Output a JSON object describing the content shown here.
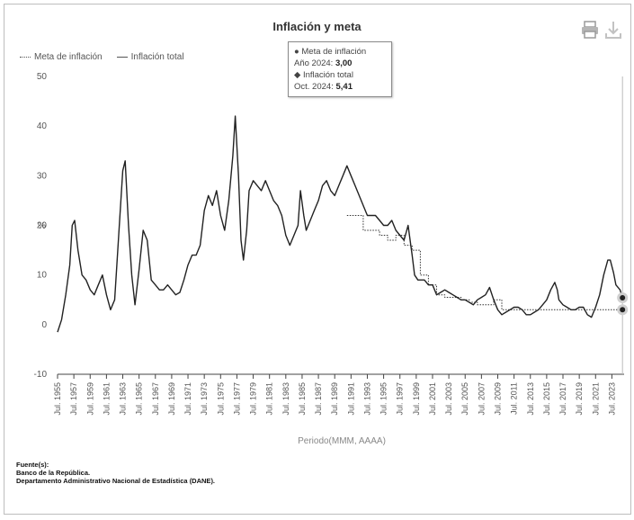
{
  "chart_data": {
    "type": "line",
    "title": "Inflación y meta",
    "xlabel": "Periodo(MMM, AAAA)",
    "ylabel": "%",
    "ylim": [
      -10,
      50
    ],
    "yticks": [
      -10,
      0,
      10,
      20,
      30,
      40,
      50
    ],
    "xlim": [
      1955.5,
      2025.0
    ],
    "x_tick_labels": [
      {
        "label": "Jul. 1955",
        "x": 1955.5
      },
      {
        "label": "Jul. 1957",
        "x": 1957.5
      },
      {
        "label": "Jul. 1959",
        "x": 1959.5
      },
      {
        "label": "Jul. 1961",
        "x": 1961.5
      },
      {
        "label": "Jul. 1963",
        "x": 1963.5
      },
      {
        "label": "Jul. 1965",
        "x": 1965.5
      },
      {
        "label": "Jul. 1967",
        "x": 1967.5
      },
      {
        "label": "Jul. 1969",
        "x": 1969.5
      },
      {
        "label": "Jul. 1971",
        "x": 1971.5
      },
      {
        "label": "Jul. 1973",
        "x": 1973.5
      },
      {
        "label": "Jul. 1975",
        "x": 1975.5
      },
      {
        "label": "Jul. 1977",
        "x": 1977.5
      },
      {
        "label": "Jul. 1979",
        "x": 1979.5
      },
      {
        "label": "Jul. 1981",
        "x": 1981.5
      },
      {
        "label": "Jul. 1983",
        "x": 1983.5
      },
      {
        "label": "Jul. 1985",
        "x": 1985.5
      },
      {
        "label": "Jul. 1987",
        "x": 1987.5
      },
      {
        "label": "Jul. 1989",
        "x": 1989.5
      },
      {
        "label": "Jul. 1991",
        "x": 1991.5
      },
      {
        "label": "Jul. 1993",
        "x": 1993.5
      },
      {
        "label": "Jul. 1995",
        "x": 1995.5
      },
      {
        "label": "Jul. 1997",
        "x": 1997.5
      },
      {
        "label": "Jul. 1999",
        "x": 1999.5
      },
      {
        "label": "Jul. 2001",
        "x": 2001.5
      },
      {
        "label": "Jul. 2003",
        "x": 2003.5
      },
      {
        "label": "Jul. 2005",
        "x": 2005.5
      },
      {
        "label": "Jul. 2007",
        "x": 2007.5
      },
      {
        "label": "Jul. 2009",
        "x": 2009.5
      },
      {
        "label": "Jul. 2011",
        "x": 2011.5
      },
      {
        "label": "Jul. 2013",
        "x": 2013.5
      },
      {
        "label": "Jul. 2015",
        "x": 2015.5
      },
      {
        "label": "Jul. 2017",
        "x": 2017.5
      },
      {
        "label": "Jul. 2019",
        "x": 2019.5
      },
      {
        "label": "Jul. 2021",
        "x": 2021.5
      },
      {
        "label": "Jul. 2023",
        "x": 2023.5
      }
    ],
    "grid": false,
    "legend_position": "top-left",
    "series": [
      {
        "name": "Meta de inflación",
        "style": "dotted",
        "color": "#333333",
        "points": [
          [
            1991.0,
            22
          ],
          [
            1992.0,
            22
          ],
          [
            1992.0,
            22
          ],
          [
            1993.0,
            22
          ],
          [
            1993.0,
            19
          ],
          [
            1994.0,
            19
          ],
          [
            1994.0,
            19
          ],
          [
            1995.0,
            19
          ],
          [
            1995.0,
            18
          ],
          [
            1996.0,
            18
          ],
          [
            1996.0,
            17
          ],
          [
            1997.0,
            17
          ],
          [
            1997.0,
            18
          ],
          [
            1998.0,
            18
          ],
          [
            1998.0,
            16
          ],
          [
            1999.0,
            16
          ],
          [
            1999.0,
            15
          ],
          [
            2000.0,
            15
          ],
          [
            2000.0,
            10
          ],
          [
            2001.0,
            10
          ],
          [
            2001.0,
            8
          ],
          [
            2002.0,
            8
          ],
          [
            2002.0,
            6
          ],
          [
            2003.0,
            6
          ],
          [
            2003.0,
            5.5
          ],
          [
            2004.0,
            5.5
          ],
          [
            2004.0,
            5.5
          ],
          [
            2005.0,
            5.5
          ],
          [
            2005.0,
            5
          ],
          [
            2006.0,
            5
          ],
          [
            2006.0,
            4.5
          ],
          [
            2007.0,
            4.5
          ],
          [
            2007.0,
            4
          ],
          [
            2008.0,
            4
          ],
          [
            2008.0,
            4
          ],
          [
            2009.0,
            4
          ],
          [
            2009.0,
            5
          ],
          [
            2010.0,
            5
          ],
          [
            2010.0,
            3
          ],
          [
            2024.8,
            3
          ]
        ]
      },
      {
        "name": "Inflación total",
        "style": "solid",
        "color": "#222222",
        "points": [
          [
            1955.5,
            -1.5
          ],
          [
            1956.0,
            1
          ],
          [
            1956.5,
            6
          ],
          [
            1957.0,
            12
          ],
          [
            1957.3,
            20
          ],
          [
            1957.6,
            21
          ],
          [
            1958.0,
            15
          ],
          [
            1958.5,
            10
          ],
          [
            1959.0,
            9
          ],
          [
            1959.5,
            7
          ],
          [
            1960.0,
            6
          ],
          [
            1960.5,
            8
          ],
          [
            1961.0,
            10
          ],
          [
            1961.5,
            6
          ],
          [
            1962.0,
            3
          ],
          [
            1962.5,
            5
          ],
          [
            1963.0,
            18
          ],
          [
            1963.5,
            31
          ],
          [
            1963.8,
            33
          ],
          [
            1964.2,
            20
          ],
          [
            1964.6,
            10
          ],
          [
            1965.0,
            4
          ],
          [
            1965.5,
            11
          ],
          [
            1966.0,
            19
          ],
          [
            1966.5,
            17
          ],
          [
            1967.0,
            9
          ],
          [
            1967.5,
            8
          ],
          [
            1968.0,
            7
          ],
          [
            1968.5,
            7
          ],
          [
            1969.0,
            8
          ],
          [
            1969.5,
            7
          ],
          [
            1970.0,
            6
          ],
          [
            1970.5,
            6.5
          ],
          [
            1971.0,
            9
          ],
          [
            1971.5,
            12
          ],
          [
            1972.0,
            14
          ],
          [
            1972.5,
            14
          ],
          [
            1973.0,
            16
          ],
          [
            1973.5,
            23
          ],
          [
            1974.0,
            26
          ],
          [
            1974.5,
            24
          ],
          [
            1975.0,
            27
          ],
          [
            1975.5,
            22
          ],
          [
            1976.0,
            19
          ],
          [
            1976.5,
            25
          ],
          [
            1977.0,
            34
          ],
          [
            1977.3,
            42
          ],
          [
            1977.7,
            30
          ],
          [
            1978.0,
            17
          ],
          [
            1978.3,
            13
          ],
          [
            1978.7,
            19
          ],
          [
            1979.0,
            27
          ],
          [
            1979.5,
            29
          ],
          [
            1980.0,
            28
          ],
          [
            1980.5,
            27
          ],
          [
            1981.0,
            29
          ],
          [
            1981.5,
            27
          ],
          [
            1982.0,
            25
          ],
          [
            1982.5,
            24
          ],
          [
            1983.0,
            22
          ],
          [
            1983.5,
            18
          ],
          [
            1984.0,
            16
          ],
          [
            1984.5,
            18
          ],
          [
            1985.0,
            20
          ],
          [
            1985.3,
            27
          ],
          [
            1985.7,
            22
          ],
          [
            1986.0,
            19
          ],
          [
            1986.5,
            21
          ],
          [
            1987.0,
            23
          ],
          [
            1987.5,
            25
          ],
          [
            1988.0,
            28
          ],
          [
            1988.5,
            29
          ],
          [
            1989.0,
            27
          ],
          [
            1989.5,
            26
          ],
          [
            1990.0,
            28
          ],
          [
            1990.5,
            30
          ],
          [
            1991.0,
            32
          ],
          [
            1991.5,
            30
          ],
          [
            1992.0,
            28
          ],
          [
            1992.5,
            26
          ],
          [
            1993.0,
            24
          ],
          [
            1993.5,
            22
          ],
          [
            1994.0,
            22
          ],
          [
            1994.5,
            22
          ],
          [
            1995.0,
            21
          ],
          [
            1995.5,
            20
          ],
          [
            1996.0,
            20
          ],
          [
            1996.5,
            21
          ],
          [
            1997.0,
            19
          ],
          [
            1997.5,
            18
          ],
          [
            1998.0,
            17
          ],
          [
            1998.5,
            20
          ],
          [
            1999.0,
            14
          ],
          [
            1999.3,
            10
          ],
          [
            1999.7,
            9
          ],
          [
            2000.0,
            9
          ],
          [
            2000.5,
            9
          ],
          [
            2001.0,
            8
          ],
          [
            2001.5,
            8
          ],
          [
            2002.0,
            6
          ],
          [
            2002.5,
            6.5
          ],
          [
            2003.0,
            7
          ],
          [
            2003.5,
            6.5
          ],
          [
            2004.0,
            6
          ],
          [
            2004.5,
            5.5
          ],
          [
            2005.0,
            5
          ],
          [
            2005.5,
            5
          ],
          [
            2006.0,
            4.5
          ],
          [
            2006.5,
            4
          ],
          [
            2007.0,
            5
          ],
          [
            2007.5,
            5.5
          ],
          [
            2008.0,
            6
          ],
          [
            2008.5,
            7.5
          ],
          [
            2009.0,
            5
          ],
          [
            2009.5,
            3
          ],
          [
            2010.0,
            2
          ],
          [
            2010.5,
            2.5
          ],
          [
            2011.0,
            3
          ],
          [
            2011.5,
            3.5
          ],
          [
            2012.0,
            3.5
          ],
          [
            2012.5,
            3
          ],
          [
            2013.0,
            2
          ],
          [
            2013.5,
            2
          ],
          [
            2014.0,
            2.5
          ],
          [
            2014.5,
            3
          ],
          [
            2015.0,
            4
          ],
          [
            2015.5,
            5
          ],
          [
            2016.0,
            7
          ],
          [
            2016.5,
            8.5
          ],
          [
            2016.8,
            7
          ],
          [
            2017.0,
            5
          ],
          [
            2017.5,
            4
          ],
          [
            2018.0,
            3.5
          ],
          [
            2018.5,
            3
          ],
          [
            2019.0,
            3
          ],
          [
            2019.5,
            3.5
          ],
          [
            2020.0,
            3.5
          ],
          [
            2020.5,
            2
          ],
          [
            2021.0,
            1.5
          ],
          [
            2021.5,
            3.5
          ],
          [
            2022.0,
            6
          ],
          [
            2022.5,
            10
          ],
          [
            2023.0,
            13
          ],
          [
            2023.3,
            13
          ],
          [
            2023.7,
            10.5
          ],
          [
            2024.0,
            8
          ],
          [
            2024.5,
            7
          ],
          [
            2024.8,
            5.41
          ]
        ]
      }
    ],
    "tooltip": {
      "meta_label": "Meta de inflación",
      "meta_period": "Año 2024:",
      "meta_value": "3,00",
      "total_label": "Inflación total",
      "total_period": "Oct. 2024:",
      "total_value": "5,41"
    },
    "source": {
      "header": "Fuente(s):",
      "lines": [
        "Banco de la República.",
        "Departamento Administrativo Nacional de Estadística (DANE)."
      ]
    },
    "icons": [
      "printer-icon",
      "download-icon"
    ]
  }
}
